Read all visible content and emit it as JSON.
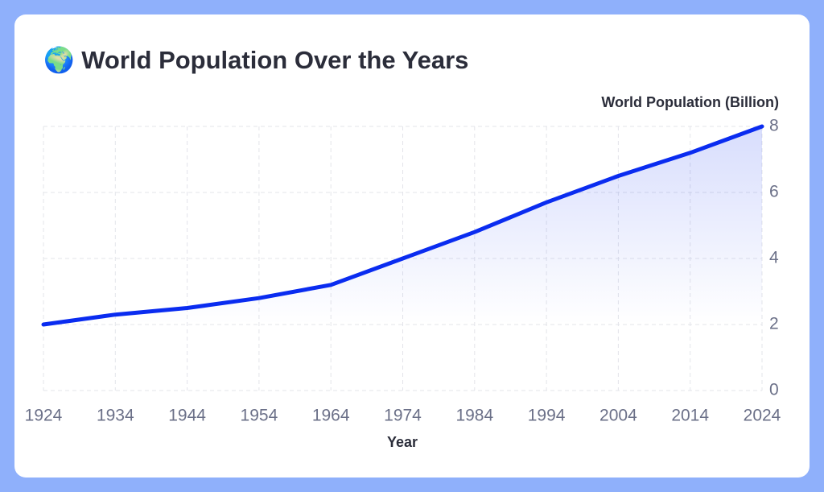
{
  "chart_data": {
    "type": "area",
    "title": "🌍 World Population Over the Years",
    "y_label": "World Population (Billion)",
    "x_label": "Year",
    "x": [
      1924,
      1934,
      1944,
      1954,
      1964,
      1974,
      1984,
      1994,
      2004,
      2014,
      2024
    ],
    "series": [
      {
        "name": "World Population (Billion)",
        "color": "#0a2cf0",
        "values": [
          2.0,
          2.3,
          2.5,
          2.8,
          3.2,
          4.0,
          4.8,
          5.7,
          6.5,
          7.2,
          8.0
        ]
      }
    ],
    "xlim": [
      1924,
      2024
    ],
    "xticks": [
      1924,
      1934,
      1944,
      1954,
      1964,
      1974,
      1984,
      1994,
      2004,
      2014,
      2024
    ],
    "ylim": [
      0,
      8
    ],
    "yticks": [
      0,
      2,
      4,
      6,
      8
    ],
    "grid": true
  }
}
